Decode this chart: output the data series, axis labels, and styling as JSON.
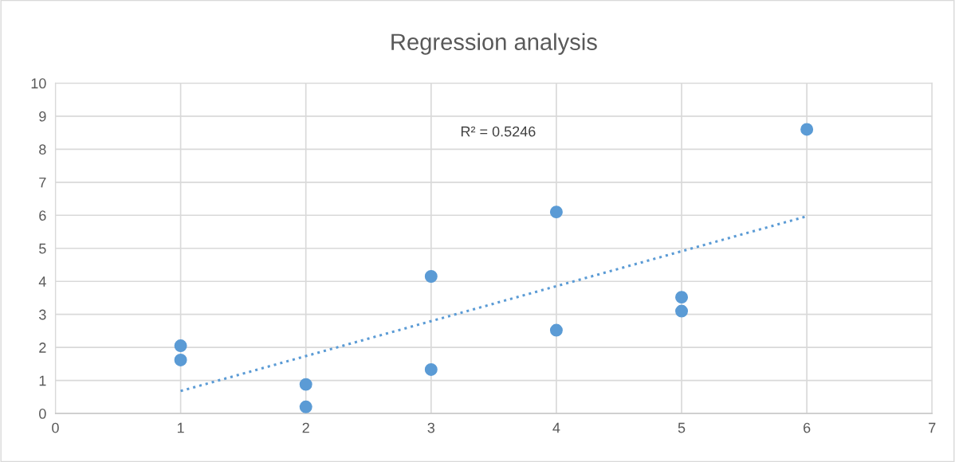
{
  "chart_data": {
    "type": "scatter",
    "title": "Regression analysis",
    "series": [
      {
        "color": "#5b9bd5",
        "marker": "circle",
        "x": [
          1,
          1,
          2,
          2,
          3,
          3,
          4,
          4,
          5,
          5,
          6
        ],
        "values": [
          2.05,
          1.62,
          0.88,
          0.2,
          4.15,
          1.33,
          6.1,
          2.52,
          3.52,
          3.1,
          8.6
        ]
      },
      {
        "type": "line",
        "color": "#5b9bd5",
        "line_style": "dotted",
        "marker": "none",
        "x": [
          1,
          6
        ],
        "values": [
          0.68,
          5.97
        ]
      }
    ],
    "annotations": [
      "R² = 0.5246"
    ],
    "xlim": [
      0,
      7
    ],
    "xticks": [
      0,
      1,
      2,
      3,
      4,
      5,
      6,
      7
    ],
    "ylim": [
      0,
      10
    ],
    "yticks": [
      0,
      1,
      2,
      3,
      4,
      5,
      6,
      7,
      8,
      9,
      10
    ],
    "grid": true,
    "legend": false
  }
}
